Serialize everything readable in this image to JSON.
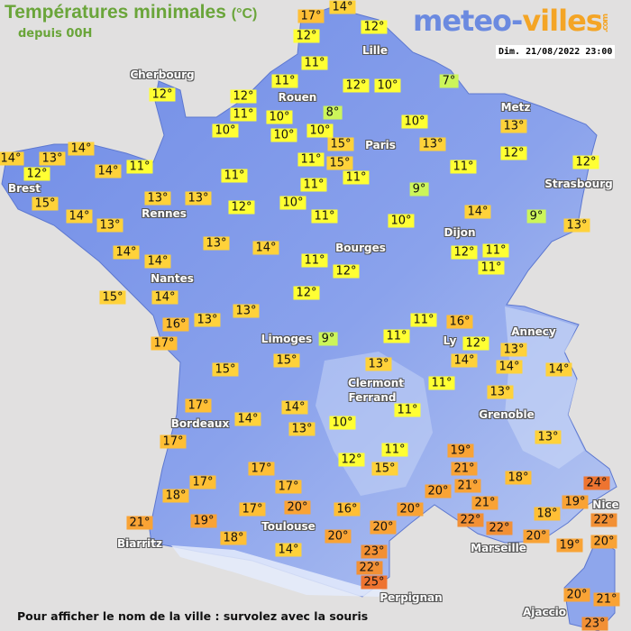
{
  "header": {
    "title": "Températures minimales",
    "unit": "(°C)",
    "subtitle": "depuis 00H",
    "logo_part1": "meteo-",
    "logo_part2": "villes",
    "logo_suffix": ".com",
    "datetime": "Dim. 21/08/2022 23:00"
  },
  "footer": "Pour afficher le nom de la ville : survolez avec la souris",
  "colors": {
    "land": "#7590e6",
    "land_light": "#a9bcef",
    "sea": "#e1e0e0",
    "title": "#6aa53a",
    "temp_7_9": "#ccf55a",
    "temp_10_12": "#ffff33",
    "temp_13_15": "#ffd23a",
    "temp_16_18": "#ffbf35",
    "temp_19_21": "#f9a335",
    "temp_22_23": "#f29035",
    "temp_24_25": "#ee7430"
  },
  "cities": [
    "Cherbourg",
    "Rouen",
    "Lille",
    "Paris",
    "Metz",
    "Strasbourg",
    "Brest",
    "Rennes",
    "Dijon",
    "Bourges",
    "Nantes",
    "Limoges",
    "Annecy",
    "Ly",
    "Clermont",
    "Ferrand",
    "Grenoble",
    "Bordeaux",
    "Toulouse",
    "Biarritz",
    "Marseille",
    "Perpignan",
    "Nice",
    "Ajaccio"
  ],
  "temps": [
    "17°",
    "14°",
    "12°",
    "12°",
    "11°",
    "11°",
    "12°",
    "11°",
    "10°",
    "10°",
    "10°",
    "8°",
    "10°",
    "12°",
    "10°",
    "7°",
    "15°",
    "15°",
    "11°",
    "11°",
    "11°",
    "10°",
    "13°",
    "13°",
    "12°",
    "11°",
    "12°",
    "9°",
    "14°",
    "9°",
    "13°",
    "10°",
    "11°",
    "12°",
    "11°",
    "11°",
    "11°",
    "12°",
    "10°",
    "12°",
    "11°",
    "13°",
    "13°",
    "14°",
    "14°",
    "13°",
    "12°",
    "14°",
    "11°",
    "12°",
    "15°",
    "14°",
    "13°",
    "14°",
    "14°",
    "13°",
    "14°",
    "15°",
    "14°",
    "12°",
    "13°",
    "13°",
    "16°",
    "17°",
    "9°",
    "15°",
    "15°",
    "11°",
    "11°",
    "16°",
    "12°",
    "14°",
    "13°",
    "14°",
    "14°",
    "13°",
    "11°",
    "13°",
    "11°",
    "10°",
    "17°",
    "14°",
    "14°",
    "13°",
    "17°",
    "13°",
    "11°",
    "12°",
    "15°",
    "19°",
    "21°",
    "18°",
    "21°",
    "20°",
    "17°",
    "17°",
    "18°",
    "17°",
    "24°",
    "19°",
    "21°",
    "22°",
    "22°",
    "22°",
    "18°",
    "17°",
    "20°",
    "16°",
    "20°",
    "20°",
    "21°",
    "19°",
    "18°",
    "20°",
    "20°",
    "19°",
    "20°",
    "14°",
    "23°",
    "22°",
    "25°",
    "20°",
    "21°",
    "23°"
  ]
}
